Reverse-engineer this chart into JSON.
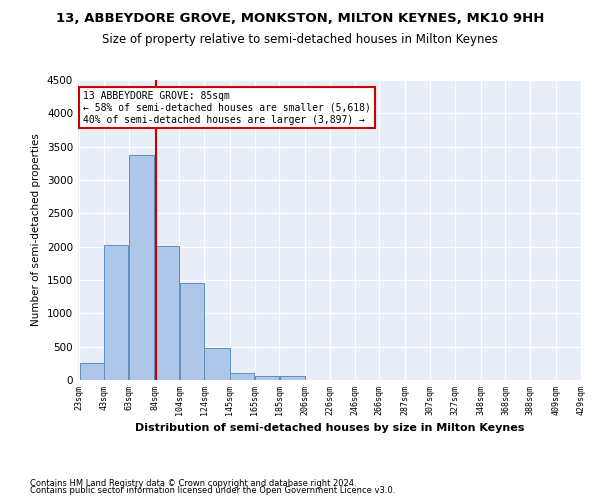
{
  "title": "13, ABBEYDORE GROVE, MONKSTON, MILTON KEYNES, MK10 9HH",
  "subtitle": "Size of property relative to semi-detached houses in Milton Keynes",
  "xlabel": "Distribution of semi-detached houses by size in Milton Keynes",
  "ylabel": "Number of semi-detached properties",
  "footer1": "Contains HM Land Registry data © Crown copyright and database right 2024.",
  "footer2": "Contains public sector information licensed under the Open Government Licence v3.0.",
  "bar_edges": [
    23,
    43,
    63,
    84,
    104,
    124,
    145,
    165,
    185,
    206,
    226,
    246,
    266,
    287,
    307,
    327,
    348,
    368,
    388,
    409,
    429
  ],
  "bar_values": [
    250,
    2030,
    3370,
    2010,
    1460,
    480,
    105,
    60,
    55,
    0,
    0,
    0,
    0,
    0,
    0,
    0,
    0,
    0,
    0,
    0
  ],
  "bar_color": "#aec6e8",
  "bar_edge_color": "#5a8fc0",
  "property_size": 85,
  "red_line_color": "#cc0000",
  "annotation_line1": "13 ABBEYDORE GROVE: 85sqm",
  "annotation_line2": "← 58% of semi-detached houses are smaller (5,618)",
  "annotation_line3": "40% of semi-detached houses are larger (3,897) →",
  "annotation_box_color": "#cc0000",
  "ylim": [
    0,
    4500
  ],
  "yticks": [
    0,
    500,
    1000,
    1500,
    2000,
    2500,
    3000,
    3500,
    4000,
    4500
  ],
  "bg_color": "#e8eef8",
  "title_fontsize": 9.5,
  "subtitle_fontsize": 8.5,
  "tick_labels": [
    "23sqm",
    "43sqm",
    "63sqm",
    "84sqm",
    "104sqm",
    "124sqm",
    "145sqm",
    "165sqm",
    "185sqm",
    "206sqm",
    "226sqm",
    "246sqm",
    "266sqm",
    "287sqm",
    "307sqm",
    "327sqm",
    "348sqm",
    "368sqm",
    "388sqm",
    "409sqm",
    "429sqm"
  ]
}
